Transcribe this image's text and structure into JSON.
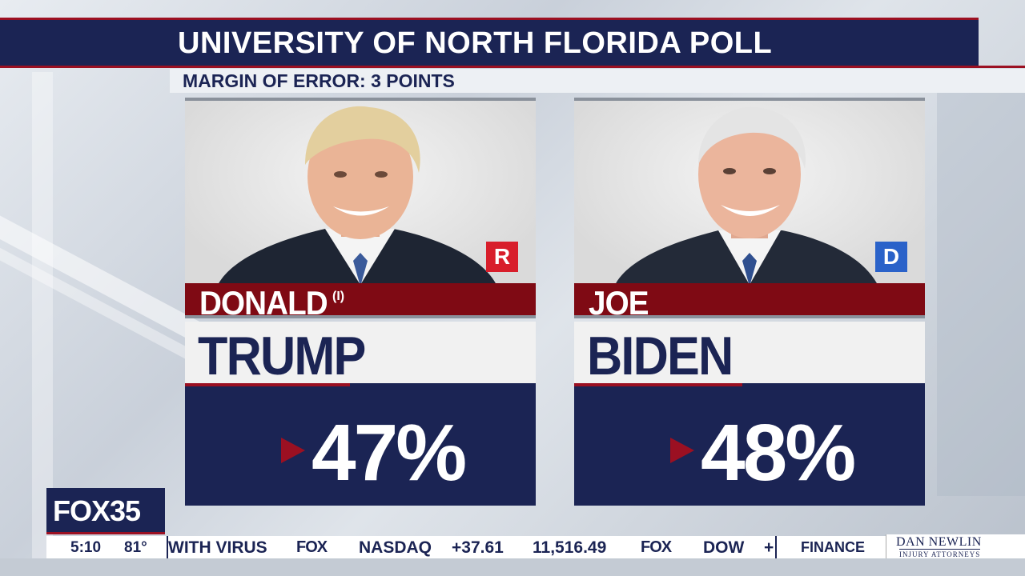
{
  "header": {
    "title": "UNIVERSITY OF NORTH FLORIDA POLL",
    "subtitle": "MARGIN OF ERROR: 3 POINTS"
  },
  "candidates": [
    {
      "first_name": "DONALD",
      "incumbent_mark": "(I)",
      "last_name": "TRUMP",
      "party": "R",
      "percent": "47%",
      "percent_value": 47,
      "party_color": "#d81e2b"
    },
    {
      "first_name": "JOE",
      "incumbent_mark": "",
      "last_name": "BIDEN",
      "party": "D",
      "percent": "48%",
      "percent_value": 48,
      "party_color": "#2a62c9"
    }
  ],
  "station": {
    "logo": "FOX35",
    "time": "5:10",
    "temperature": "81°"
  },
  "ticker": {
    "items": [
      "WITH  VIRUS",
      "FOX",
      "NASDAQ",
      "+37.61",
      "11,516.49",
      "FOX",
      "DOW",
      "+"
    ],
    "category": "FINANCE"
  },
  "sponsor": {
    "name": "DAN NEWLIN",
    "subtitle": "INJURY ATTORNEYS"
  },
  "colors": {
    "navy": "#1b2454",
    "dark_red": "#7f0a14",
    "accent_red": "#9b1022"
  }
}
